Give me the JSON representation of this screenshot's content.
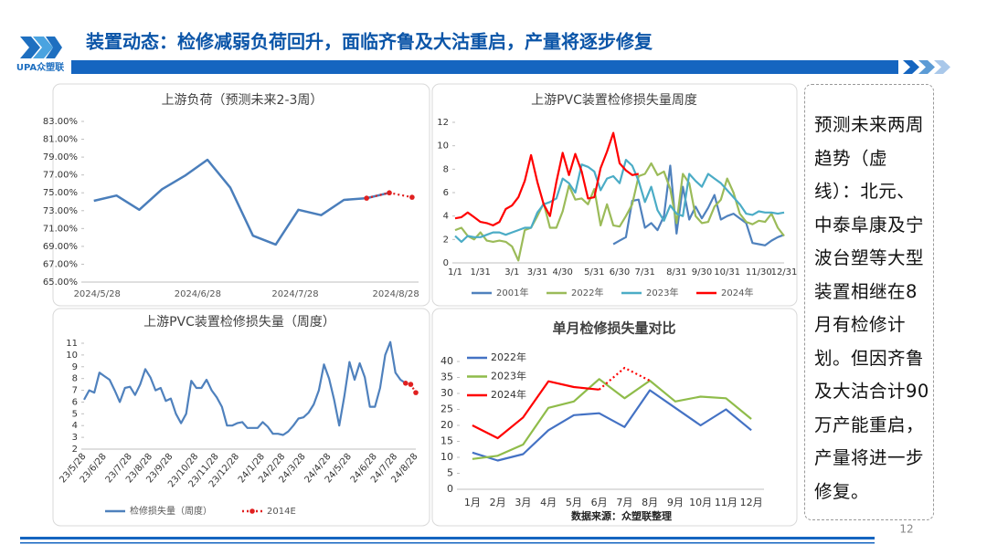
{
  "header": {
    "title": "装置动态：检修减弱负荷回升，面临齐鲁及大沽重启，产量将逐步修复",
    "logo": "UPA众塑联"
  },
  "note": "预测未来两周趋势（虚线）：北元、中泰阜康及宁波台塑等大型装置相继在8月有检修计划。但因齐鲁及大沽合计90万产能重启，产量将进一步修复。",
  "page_number": 12,
  "chart_data": [
    {
      "type": "line",
      "title": "上游负荷（预测未来2-3周）",
      "x": [
        "2024/5/27",
        "2024/6/3",
        "2024/6/10",
        "2024/6/17",
        "2024/6/24",
        "2024/7/1",
        "2024/7/8",
        "2024/7/15",
        "2024/7/22",
        "2024/7/29",
        "2024/8/5",
        "2024/8/12",
        "2024/8/19",
        "2024/8/26",
        "2024/9/2"
      ],
      "xlim": [
        "2024/5/24",
        "2024/9/4"
      ],
      "xticks": [
        "2024/5/28",
        "2024/6/28",
        "2024/7/28",
        "2024/8/28"
      ],
      "series": [
        {
          "color": "#4a7ebb",
          "values": [
            74.1,
            74.7,
            73.1,
            75.4,
            76.9,
            78.7,
            75.6,
            70.2,
            69.2,
            73.1,
            72.5,
            74.2,
            74.4,
            75.0,
            null
          ]
        },
        {
          "color": "#e02020",
          "line_style": "dotted",
          "markers": true,
          "values": [
            null,
            null,
            null,
            null,
            null,
            null,
            null,
            null,
            null,
            null,
            null,
            null,
            74.4,
            75.0,
            74.5
          ]
        }
      ],
      "ylim": [
        65,
        83
      ],
      "yticks": [
        {
          "value": 65,
          "label": "65.00%"
        },
        {
          "value": 67,
          "label": "67.00%"
        },
        {
          "value": 69,
          "label": "69.00%"
        },
        {
          "value": 71,
          "label": "71.00%"
        },
        {
          "value": 73,
          "label": "73.00%"
        },
        {
          "value": 75,
          "label": "75.00%"
        },
        {
          "value": 77,
          "label": "77.00%"
        },
        {
          "value": 79,
          "label": "79.00%"
        },
        {
          "value": 81,
          "label": "81.00%"
        },
        {
          "value": 83,
          "label": "83.00%"
        }
      ],
      "grid": false
    },
    {
      "type": "line",
      "title": "上游PVC装置检修损失量周度",
      "categories": [
        "1/1",
        null,
        null,
        null,
        "1/31",
        null,
        null,
        null,
        null,
        "3/1",
        null,
        null,
        null,
        "3/31",
        null,
        null,
        null,
        "4/30",
        null,
        null,
        null,
        null,
        "5/31",
        null,
        null,
        null,
        "6/30",
        null,
        null,
        null,
        "7/31",
        null,
        null,
        null,
        null,
        "8/31",
        null,
        null,
        null,
        "9/30",
        null,
        null,
        null,
        "10/31",
        null,
        null,
        null,
        null,
        "11/30",
        null,
        null,
        null,
        "12/31"
      ],
      "series": [
        {
          "name": "2001年",
          "color": "#4f81bd",
          "values": [
            null,
            null,
            null,
            null,
            null,
            null,
            null,
            null,
            null,
            null,
            null,
            null,
            null,
            null,
            null,
            null,
            null,
            null,
            null,
            null,
            null,
            null,
            null,
            null,
            null,
            1.6,
            1.9,
            2.2,
            5.3,
            5.4,
            3.0,
            3.4,
            2.8,
            4.0,
            8.3,
            2.5,
            6.5,
            3.7,
            4.8,
            3.8,
            4.7,
            5.8,
            3.7,
            4.0,
            4.2,
            3.8,
            3.4,
            1.7,
            1.6,
            1.5,
            1.9,
            2.2,
            2.4
          ]
        },
        {
          "name": "2022年",
          "color": "#9bbb59",
          "values": [
            2.8,
            3.0,
            2.3,
            2.0,
            2.6,
            1.9,
            1.8,
            1.9,
            1.8,
            1.4,
            0.2,
            2.8,
            3.0,
            4.0,
            5.1,
            3.0,
            3.0,
            4.4,
            6.6,
            5.4,
            5.5,
            5.0,
            6.3,
            3.2,
            5.0,
            3.2,
            3.1,
            4.0,
            5.0,
            7.4,
            7.6,
            8.5,
            7.5,
            7.8,
            6.3,
            3.4,
            7.6,
            6.8,
            4.0,
            3.4,
            3.5,
            4.8,
            5.4,
            7.2,
            6.0,
            4.2,
            3.5,
            3.3,
            3.6,
            3.5,
            4.2,
            3.0,
            2.3
          ]
        },
        {
          "name": "2023年",
          "color": "#4bacc6",
          "values": [
            2.3,
            1.8,
            2.3,
            2.2,
            2.2,
            2.4,
            2.6,
            2.6,
            2.4,
            2.6,
            2.8,
            3.0,
            3.0,
            4.3,
            5.0,
            5.2,
            5.5,
            7.2,
            6.8,
            6.0,
            8.4,
            8.2,
            7.8,
            6.2,
            7.2,
            7.4,
            6.8,
            8.8,
            8.3,
            7.0,
            5.2,
            6.5,
            4.5,
            3.6,
            4.9,
            4.2,
            4.0,
            7.6,
            7.0,
            6.5,
            7.6,
            7.2,
            6.8,
            6.2,
            5.6,
            5.0,
            4.2,
            4.1,
            4.4,
            4.3,
            4.3,
            4.2,
            4.3
          ]
        },
        {
          "name": "2024年",
          "color": "#ff0000",
          "values": [
            3.8,
            3.9,
            4.3,
            3.9,
            3.5,
            3.4,
            3.2,
            3.5,
            4.6,
            4.9,
            5.6,
            7.0,
            9.2,
            6.9,
            5.0,
            4.0,
            6.9,
            9.4,
            7.5,
            9.3,
            7.8,
            5.5,
            5.6,
            8.1,
            9.5,
            11.1,
            8.5,
            7.9,
            7.5,
            7.6,
            null,
            null,
            null,
            null,
            null,
            null,
            null,
            null,
            null,
            null,
            null,
            null,
            null,
            null,
            null,
            null,
            null,
            null,
            null,
            null,
            null,
            null,
            null
          ]
        }
      ],
      "ylim": [
        0,
        12
      ],
      "yticks": [
        0,
        2,
        4,
        6,
        8,
        10,
        12
      ],
      "grid": false,
      "legend": "bottom"
    },
    {
      "type": "line",
      "title": "上游PVC装置检修损失量（周度）",
      "categories": [
        "23/5/28",
        null,
        null,
        null,
        "23/6/28",
        null,
        null,
        null,
        null,
        "23/7/28",
        null,
        null,
        null,
        "23/8/28",
        null,
        null,
        null,
        "23/9/28",
        null,
        null,
        null,
        null,
        "23/10/28",
        null,
        null,
        null,
        "23/11/28",
        null,
        null,
        null,
        "23/12/28",
        null,
        null,
        null,
        null,
        "24/1/28",
        null,
        null,
        null,
        "24/2/28",
        null,
        null,
        null,
        "24/3/28",
        null,
        null,
        null,
        null,
        "24/4/28",
        null,
        null,
        null,
        "24/5/28",
        null,
        null,
        null,
        null,
        "24/6/28",
        null,
        null,
        null,
        "24/7/28",
        null,
        null,
        null,
        "24/8/28"
      ],
      "series": [
        {
          "name": "检修损失量（周度）",
          "color": "#4f81bd",
          "values": [
            6.2,
            7.0,
            6.8,
            8.5,
            8.2,
            7.9,
            7.0,
            6.0,
            7.2,
            7.3,
            6.6,
            7.5,
            8.8,
            8.1,
            7.0,
            7.2,
            6.1,
            6.3,
            5.0,
            4.2,
            5.0,
            7.8,
            7.2,
            7.2,
            7.9,
            7.0,
            6.4,
            5.6,
            4.0,
            4.0,
            4.2,
            4.3,
            3.8,
            3.8,
            3.8,
            4.3,
            3.9,
            3.3,
            3.3,
            3.2,
            3.5,
            4.0,
            4.6,
            4.7,
            5.1,
            5.8,
            7.0,
            9.2,
            8.0,
            6.2,
            4.0,
            6.5,
            9.4,
            7.9,
            9.3,
            8.1,
            5.6,
            5.6,
            7.2,
            10.0,
            11.1,
            8.5,
            7.9,
            7.6,
            null,
            null
          ]
        },
        {
          "name": "2014E",
          "color": "#e02020",
          "line_style": "dotted",
          "markers": true,
          "values": [
            null,
            null,
            null,
            null,
            null,
            null,
            null,
            null,
            null,
            null,
            null,
            null,
            null,
            null,
            null,
            null,
            null,
            null,
            null,
            null,
            null,
            null,
            null,
            null,
            null,
            null,
            null,
            null,
            null,
            null,
            null,
            null,
            null,
            null,
            null,
            null,
            null,
            null,
            null,
            null,
            null,
            null,
            null,
            null,
            null,
            null,
            null,
            null,
            null,
            null,
            null,
            null,
            null,
            null,
            null,
            null,
            null,
            null,
            null,
            null,
            null,
            null,
            null,
            7.6,
            7.5,
            6.8
          ]
        }
      ],
      "ylim": [
        2,
        11
      ],
      "yticks": [
        2,
        3,
        4,
        5,
        6,
        7,
        8,
        9,
        10,
        11
      ],
      "grid": false,
      "legend": "bottom"
    },
    {
      "type": "line",
      "title": "单月检修损失量对比",
      "source": "数据来源：众塑联整理",
      "categories": [
        "1月",
        "2月",
        "3月",
        "4月",
        "5月",
        "6月",
        "7月",
        "8月",
        "9月",
        "10月",
        "11月",
        "12月"
      ],
      "series": [
        {
          "name": "2022年",
          "color": "#4472c4",
          "values": [
            11.5,
            9,
            11,
            18.5,
            23.2,
            23.8,
            19.5,
            31,
            25.5,
            20,
            25,
            18.5
          ]
        },
        {
          "name": "2023年",
          "color": "#8fbc4a",
          "values": [
            9.5,
            10.5,
            14,
            25.5,
            27.5,
            34.5,
            28.5,
            34,
            27.5,
            29,
            28.5,
            22
          ]
        },
        {
          "name": "2024年",
          "color": "#ff0000",
          "values": [
            20,
            16,
            22.5,
            33.8,
            32,
            31.2,
            null,
            null,
            null,
            null,
            null,
            null
          ]
        },
        {
          "color": "#ff0000",
          "line_style": "dotted",
          "values": [
            null,
            null,
            null,
            null,
            null,
            31.2,
            38,
            34,
            null,
            null,
            null,
            null
          ]
        }
      ],
      "ylim": [
        0,
        40
      ],
      "yticks": [
        0,
        5,
        10,
        15,
        20,
        25,
        30,
        35,
        40
      ],
      "grid": false,
      "legend": "top-left"
    }
  ]
}
